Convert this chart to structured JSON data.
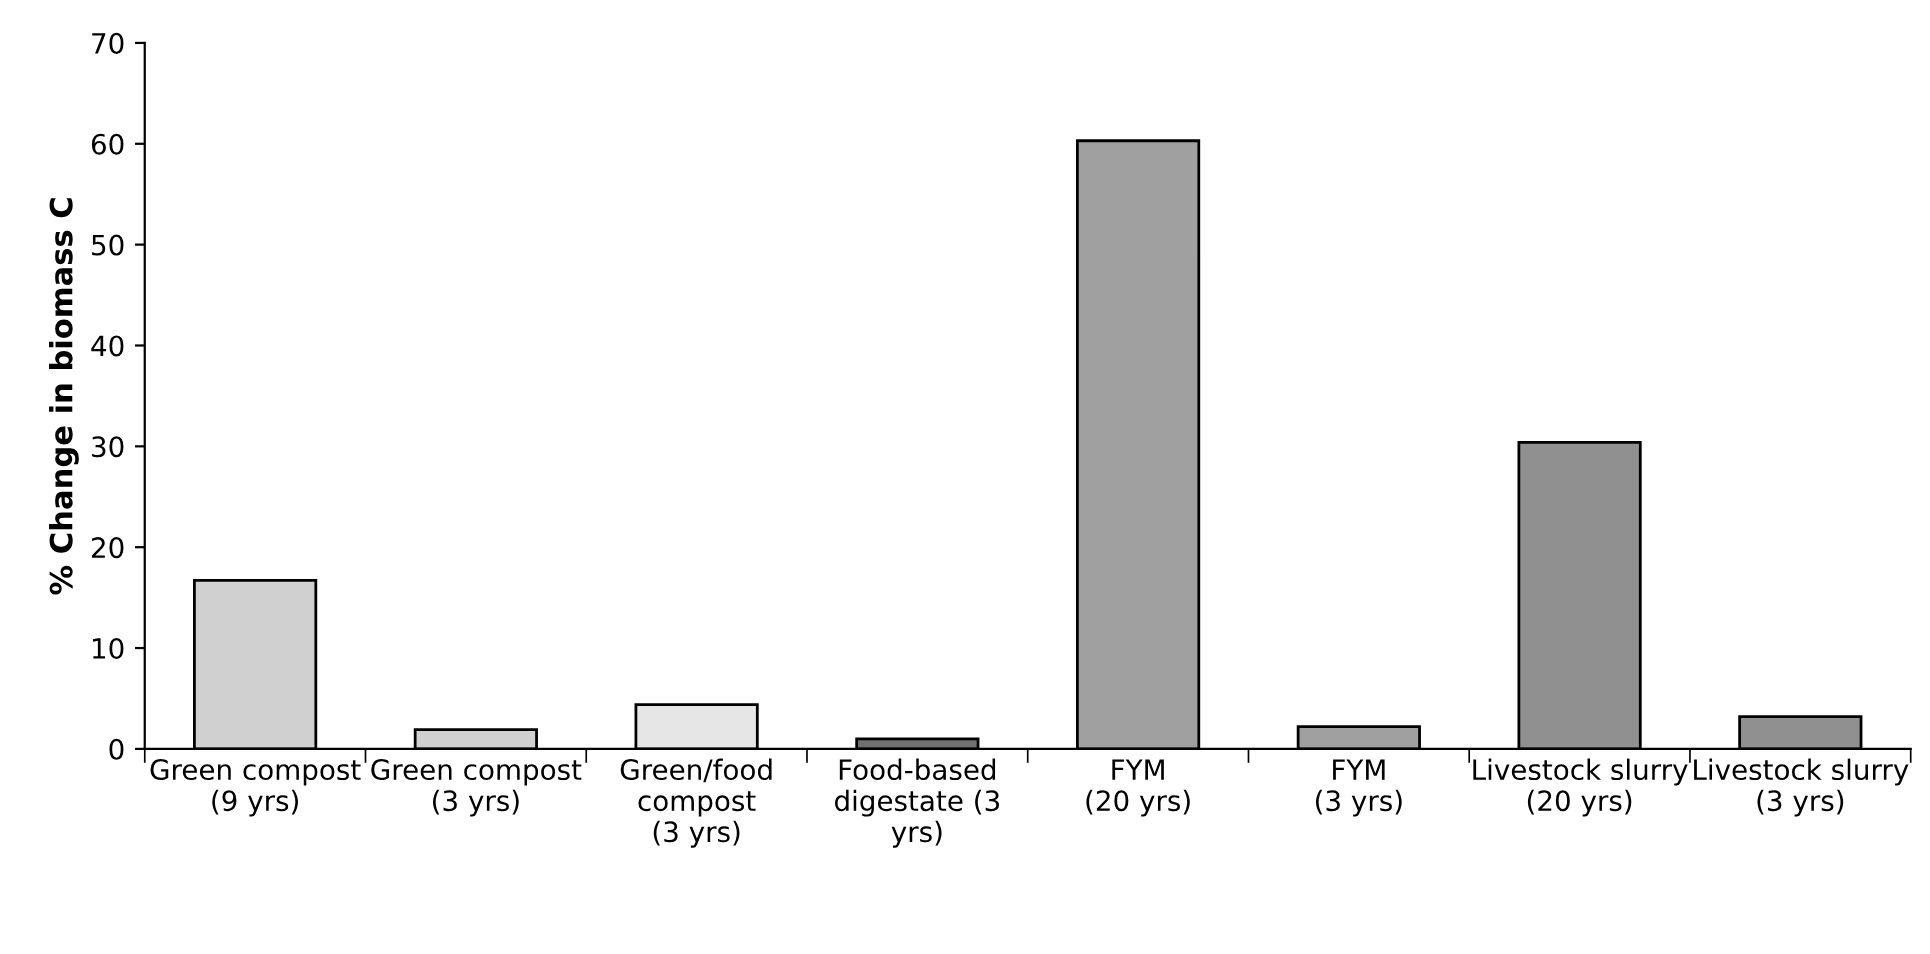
{
  "chart_data": {
    "type": "bar",
    "ylabel": "% Change in biomass C",
    "categories": [
      "Green compost\n(9 yrs)",
      "Green compost\n(3 yrs)",
      "Green/food\ncompost\n(3 yrs)",
      "Food-based\ndigestate (3\nyrs)",
      "FYM\n(20 yrs)",
      "FYM\n(3 yrs)",
      "Livestock slurry\n(20 yrs)",
      "Livestock slurry\n(3 yrs)"
    ],
    "values": [
      16.7,
      1.9,
      4.4,
      1.0,
      60.3,
      2.2,
      30.4,
      3.2
    ],
    "colors": [
      "#d0d0d0",
      "#d0d0d0",
      "#e6e6e6",
      "#707070",
      "#a0a0a0",
      "#a0a0a0",
      "#909090",
      "#909090"
    ],
    "ylim": [
      0,
      70
    ],
    "yticks": [
      0,
      10,
      20,
      30,
      40,
      50,
      60,
      70
    ],
    "grid": false,
    "legend": false
  }
}
